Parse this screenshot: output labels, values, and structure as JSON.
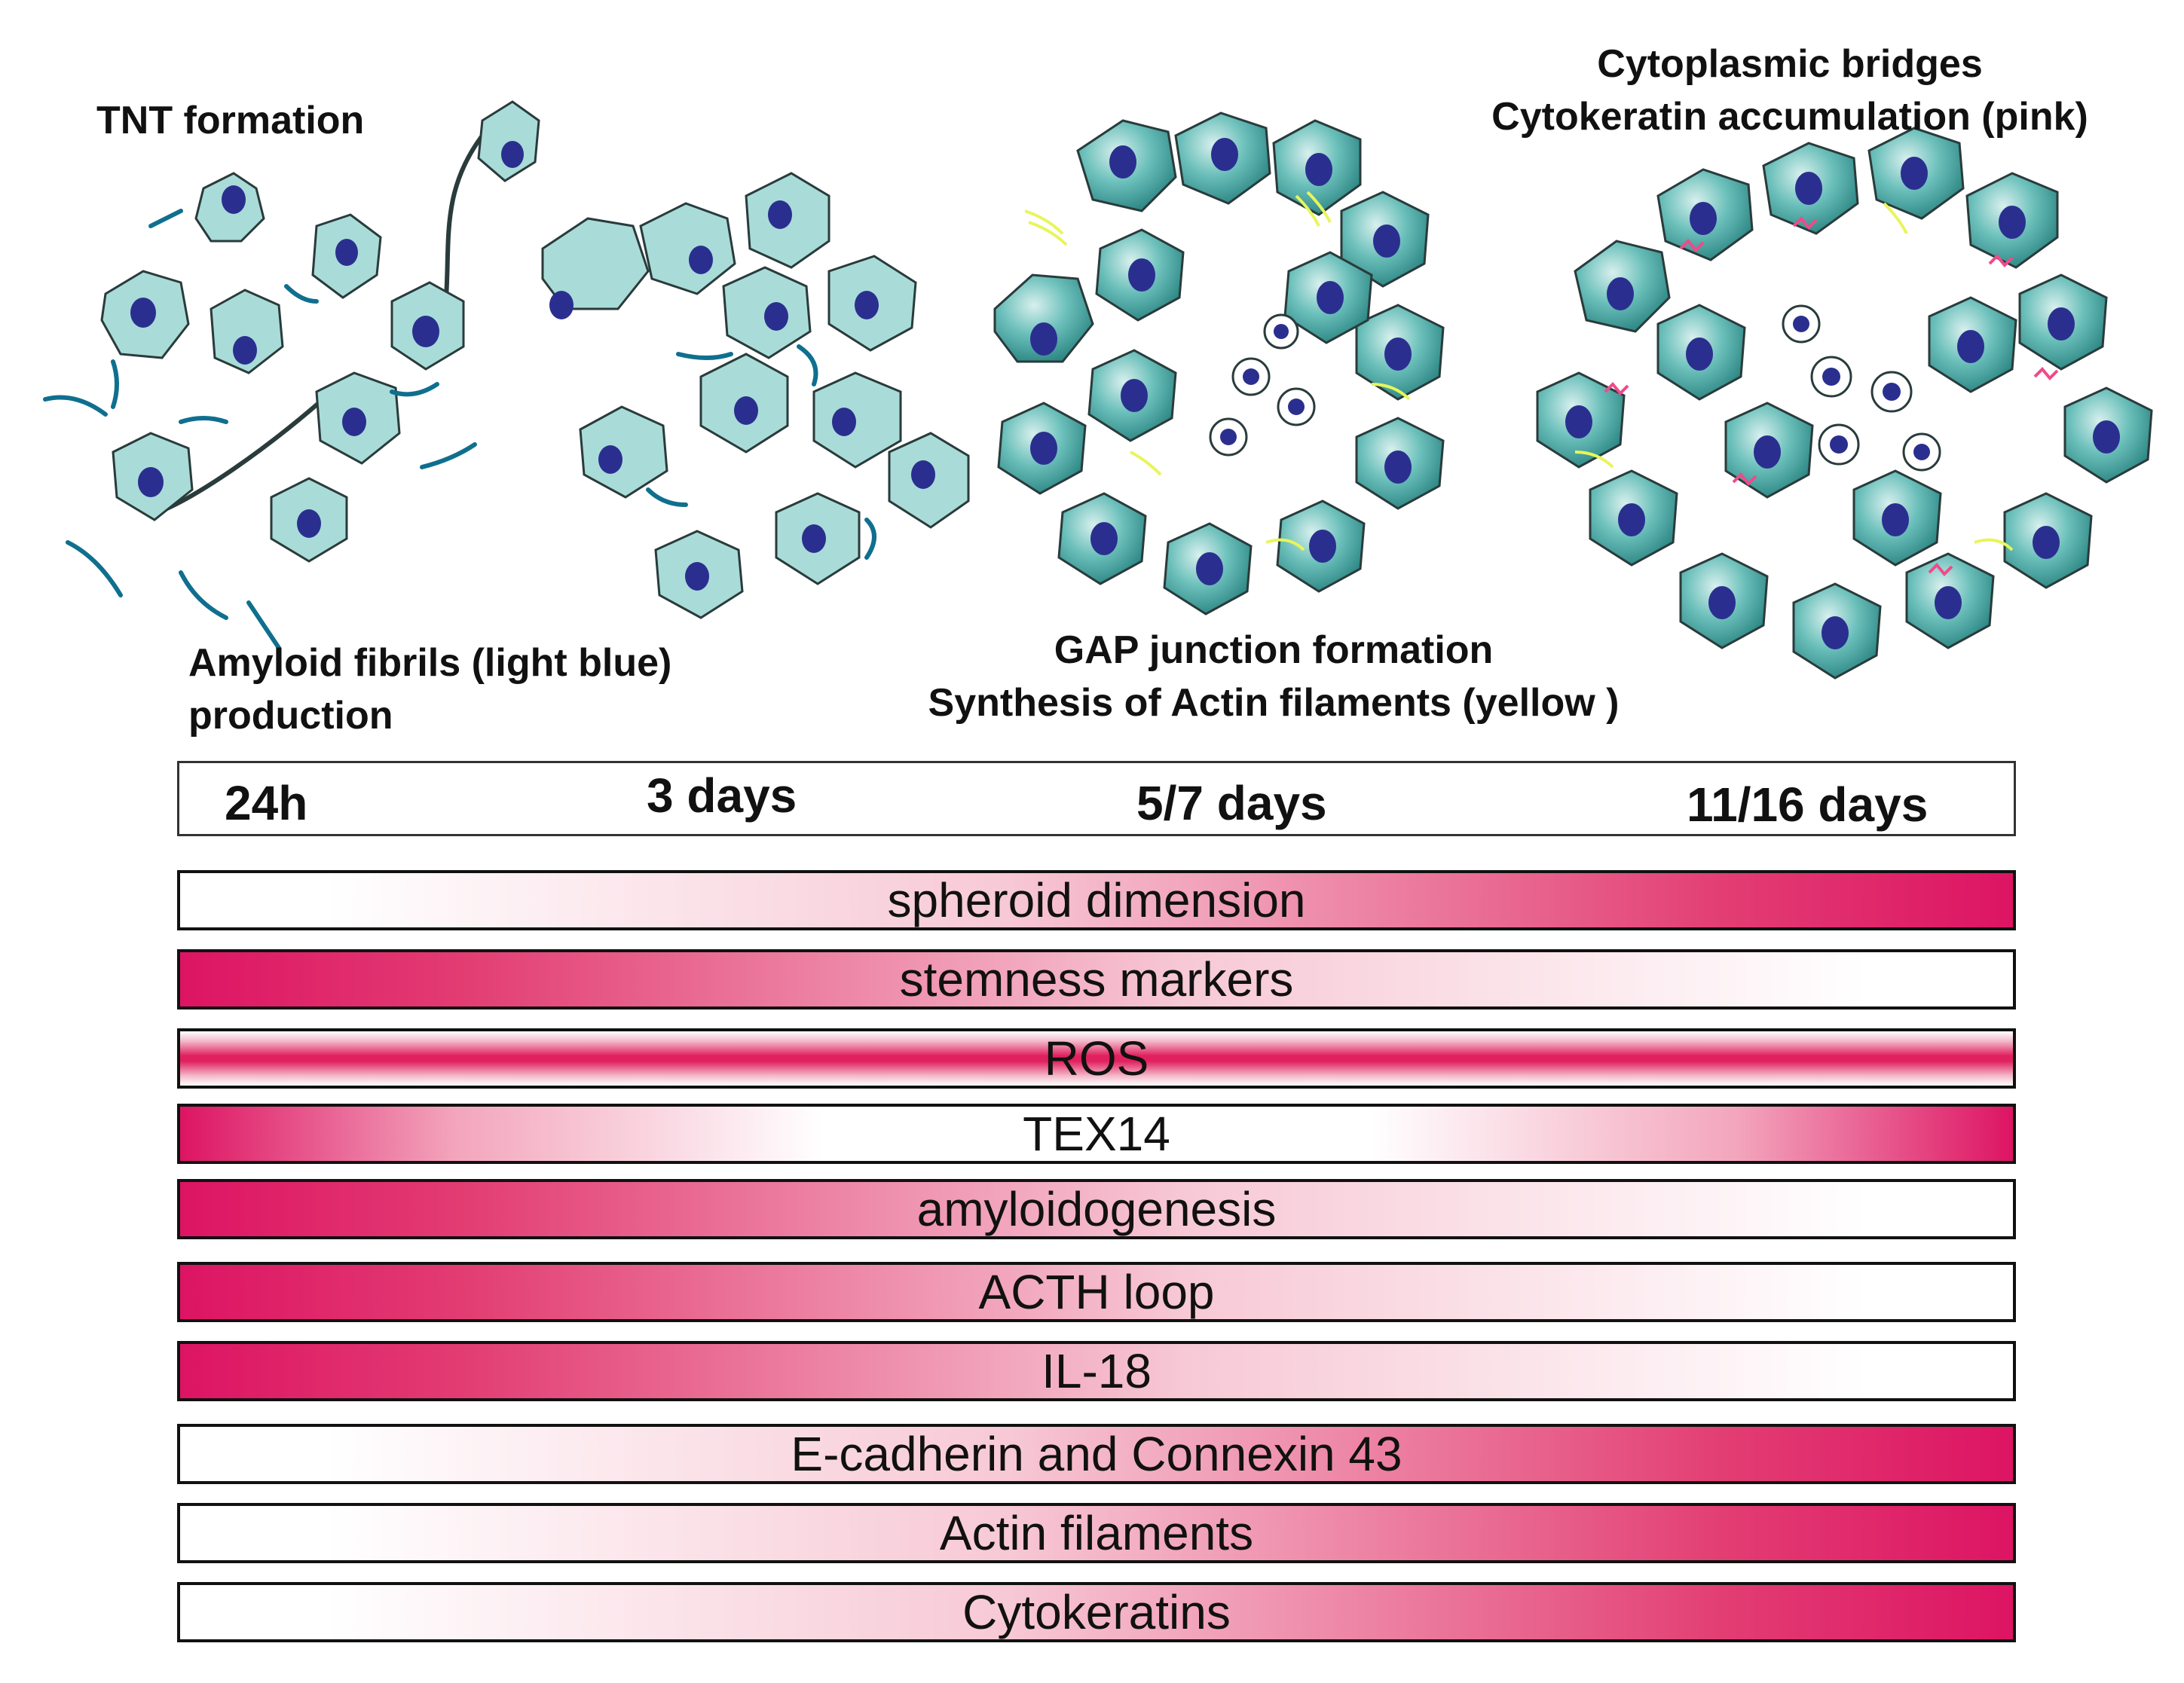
{
  "captions": {
    "tnt": "TNT formation",
    "amyloid_line1": "Amyloid fibrils (light blue)",
    "amyloid_line2": "production",
    "gap_line1": "GAP junction formation",
    "gap_line2": "Synthesis of Actin filaments (yellow )",
    "cyto_line1": "Cytoplasmic bridges",
    "cyto_line2": "Cytokeratin accumulation (pink)"
  },
  "timeline": [
    "24h",
    "3 days",
    "5/7 days",
    "11/16 days"
  ],
  "bars": [
    {
      "label": "spheroid dimension",
      "trend": "increase"
    },
    {
      "label": "stemness markers",
      "trend": "decrease"
    },
    {
      "label": "ROS",
      "trend": "constant"
    },
    {
      "label": "TEX14",
      "trend": "u-shape"
    },
    {
      "label": "amyloidogenesis",
      "trend": "decrease"
    },
    {
      "label": "ACTH loop",
      "trend": "decrease"
    },
    {
      "label": "IL-18",
      "trend": "decrease"
    },
    {
      "label": "E-cadherin and Connexin 43",
      "trend": "increase"
    },
    {
      "label": "Actin filaments",
      "trend": "increase"
    },
    {
      "label": "Cytokeratins",
      "trend": "increase"
    }
  ],
  "colors": {
    "cell_fill": "#a9dcd8",
    "cell_fill_dark": "#2f8f8c",
    "cell_outline": "#2a3b3b",
    "nucleus": "#2a2f8f",
    "fibril": "#0f6f8f",
    "actin": "#e8f55a",
    "cytokeratin": "#ef4a8a",
    "gradient_strong": "#dd1463"
  }
}
